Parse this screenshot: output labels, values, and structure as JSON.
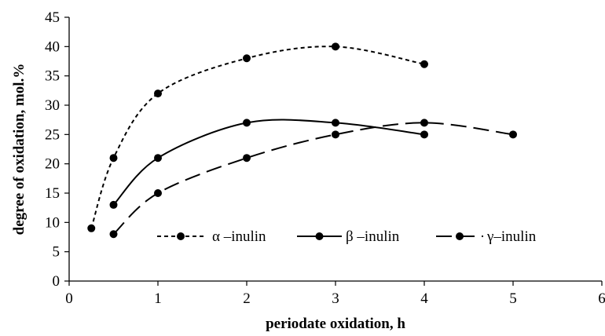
{
  "chart_data": {
    "type": "line",
    "title": "",
    "xlabel": "periodate oxidation, h",
    "ylabel": "degree of oxidation, mol.%",
    "xlim": [
      0,
      6
    ],
    "ylim": [
      0,
      45
    ],
    "xticks": [
      0,
      1,
      2,
      3,
      4,
      5,
      6
    ],
    "yticks": [
      0,
      5,
      10,
      15,
      20,
      25,
      30,
      35,
      40,
      45
    ],
    "grid": false,
    "legend_position": "inside-bottom",
    "series": [
      {
        "name": "α –inulin",
        "style": "dotted",
        "points": [
          [
            0.25,
            9
          ],
          [
            0.5,
            21
          ],
          [
            1,
            32
          ],
          [
            2,
            38
          ],
          [
            3,
            40
          ],
          [
            4,
            37
          ]
        ]
      },
      {
        "name": "β –inulin",
        "style": "solid",
        "points": [
          [
            0.5,
            13
          ],
          [
            1,
            21
          ],
          [
            2,
            27
          ],
          [
            3,
            27
          ],
          [
            4,
            25
          ]
        ]
      },
      {
        "name": "γ–inulin",
        "style": "dashed",
        "points": [
          [
            0.5,
            8
          ],
          [
            1,
            15
          ],
          [
            2,
            21
          ],
          [
            3,
            25
          ],
          [
            4,
            27
          ],
          [
            5,
            25
          ]
        ]
      }
    ]
  }
}
